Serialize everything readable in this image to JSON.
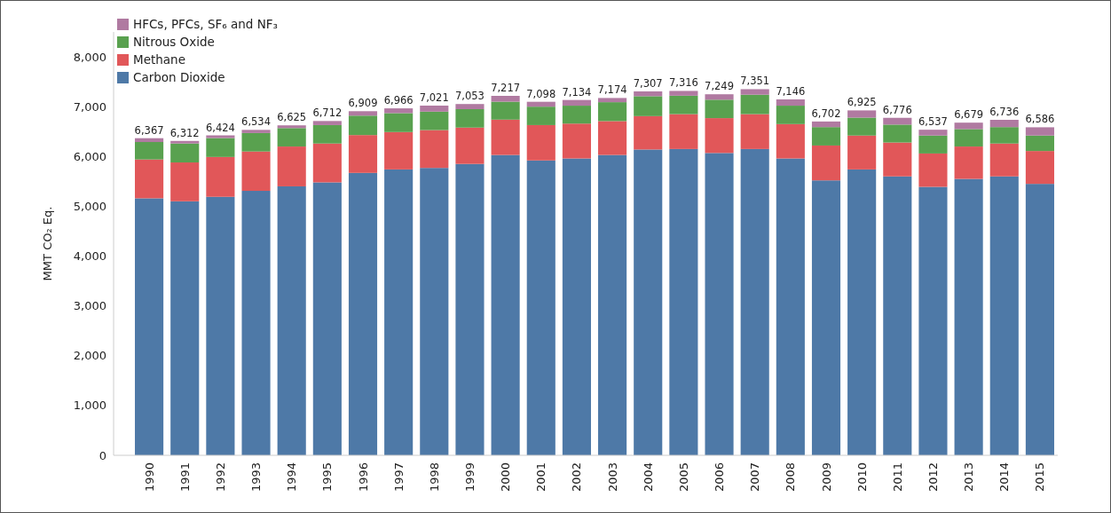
{
  "chart_data": {
    "type": "bar",
    "stacked": true,
    "ylabel": "MMT CO₂ Eq.",
    "categories": [
      "1990",
      "1991",
      "1992",
      "1993",
      "1994",
      "1995",
      "1996",
      "1997",
      "1998",
      "1999",
      "2000",
      "2001",
      "2002",
      "2003",
      "2004",
      "2005",
      "2006",
      "2007",
      "2008",
      "2009",
      "2010",
      "2011",
      "2012",
      "2013",
      "2014",
      "2015"
    ],
    "series": [
      {
        "name": "Carbon Dioxide",
        "color": "#4e79a7",
        "values": [
          5160,
          5100,
          5190,
          5310,
          5400,
          5480,
          5670,
          5740,
          5770,
          5850,
          6030,
          5920,
          5960,
          6030,
          6140,
          6150,
          6070,
          6150,
          5960,
          5520,
          5740,
          5600,
          5390,
          5550,
          5600,
          5450
        ]
      },
      {
        "name": "Methane",
        "color": "#e15759",
        "values": [
          780,
          780,
          800,
          790,
          800,
          780,
          760,
          750,
          760,
          730,
          710,
          710,
          700,
          680,
          670,
          700,
          700,
          700,
          690,
          700,
          680,
          680,
          670,
          650,
          660,
          660
        ]
      },
      {
        "name": "Nitrous Oxide",
        "color": "#59a14f",
        "values": [
          350,
          380,
          380,
          370,
          370,
          370,
          390,
          380,
          370,
          370,
          360,
          370,
          360,
          380,
          400,
          370,
          370,
          390,
          370,
          370,
          360,
          360,
          360,
          350,
          330,
          310
        ]
      },
      {
        "name": "HFCs, PFCs, SF₆ and NF₃",
        "color": "#b07aa1",
        "values": [
          77,
          52,
          54,
          64,
          55,
          82,
          89,
          96,
          121,
          103,
          117,
          98,
          114,
          84,
          97,
          96,
          109,
          111,
          126,
          112,
          145,
          136,
          117,
          129,
          146,
          166
        ]
      }
    ],
    "totals": [
      "6,367",
      "6,312",
      "6,424",
      "6,534",
      "6,625",
      "6,712",
      "6,909",
      "6,966",
      "7,021",
      "7,053",
      "7,217",
      "7,098",
      "7,134",
      "7,174",
      "7,307",
      "7,316",
      "7,249",
      "7,351",
      "7,146",
      "6,702",
      "6,925",
      "6,776",
      "6,537",
      "6,679",
      "6,736",
      "6,586"
    ],
    "ylim": [
      0,
      8500
    ],
    "yticks": [
      {
        "value": 0,
        "label": "0"
      },
      {
        "value": 1000,
        "label": "1,000"
      },
      {
        "value": 2000,
        "label": "2,000"
      },
      {
        "value": 3000,
        "label": "3,000"
      },
      {
        "value": 4000,
        "label": "4,000"
      },
      {
        "value": 5000,
        "label": "5,000"
      },
      {
        "value": 6000,
        "label": "6,000"
      },
      {
        "value": 7000,
        "label": "7,000"
      },
      {
        "value": 8000,
        "label": "8,000"
      }
    ],
    "legend": "top left"
  }
}
